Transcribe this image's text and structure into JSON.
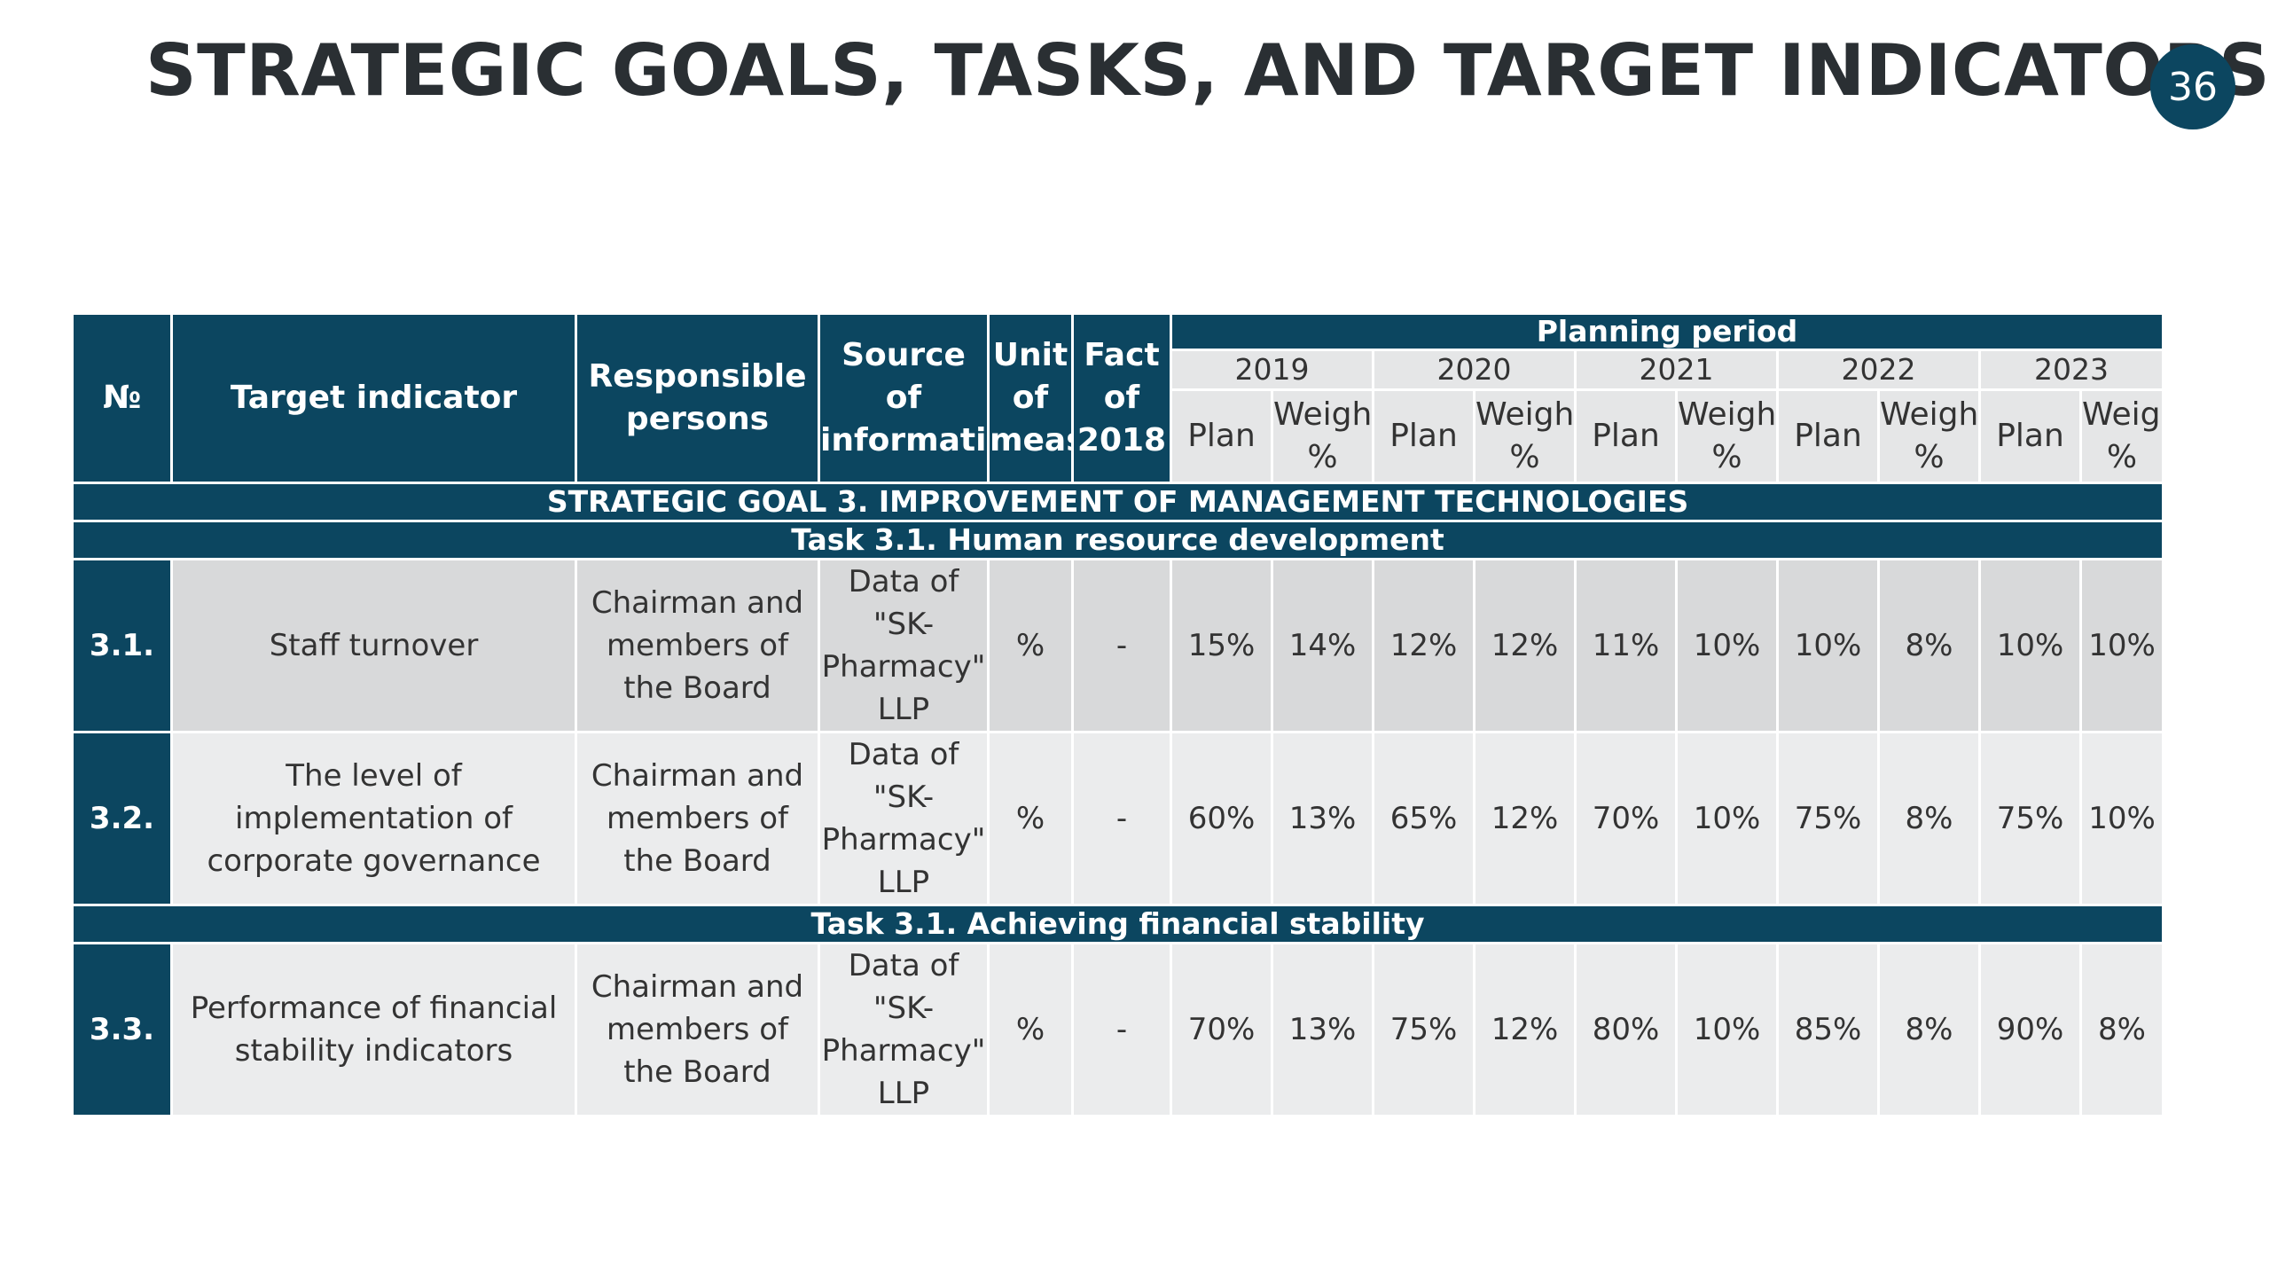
{
  "title": "STRATEGIC GOALS, TASKS, AND TARGET INDICATORS",
  "page_number": "36",
  "colors": {
    "header_bg": "#0c4660",
    "subheader_bg": "#e5e6e7",
    "row_bg_dark": "#d8d9da",
    "row_bg_light": "#ebeced"
  },
  "table": {
    "headers": {
      "no": "№",
      "target": "Target indicator",
      "responsible": "Responsible persons",
      "source": "Source of information",
      "unit": "Unit of meas.",
      "fact": "Fact of 2018",
      "planning": "Planning period",
      "years": [
        "2019",
        "2020",
        "2021",
        "2022",
        "2023"
      ],
      "plan": "Plan",
      "weight": "Weight, %"
    },
    "goal": "STRATEGIC GOAL 3. IMPROVEMENT OF MANAGEMENT TECHNOLOGIES",
    "task1": "Task 3.1. Human resource development",
    "task2": "Task 3.1. Achieving financial stability",
    "rows": [
      {
        "no": "3.1.",
        "indicator": "Staff turnover",
        "responsible": "Chairman and members of the Board",
        "source": "Data of \"SK-Pharmacy\" LLP",
        "unit": "%",
        "fact": "-",
        "values": [
          "15%",
          "14%",
          "12%",
          "12%",
          "11%",
          "10%",
          "10%",
          "8%",
          "10%",
          "10%"
        ]
      },
      {
        "no": "3.2.",
        "indicator": "The level of implementation of corporate governance",
        "responsible": "Chairman and members of the Board",
        "source": "Data of \"SK-Pharmacy\" LLP",
        "unit": "%",
        "fact": "-",
        "values": [
          "60%",
          "13%",
          "65%",
          "12%",
          "70%",
          "10%",
          "75%",
          "8%",
          "75%",
          "10%"
        ]
      },
      {
        "no": "3.3.",
        "indicator": "Performance of financial stability indicators",
        "responsible": "Chairman and members of the Board",
        "source": "Data of \"SK-Pharmacy\" LLP",
        "unit": "%",
        "fact": "-",
        "values": [
          "70%",
          "13%",
          "75%",
          "12%",
          "80%",
          "10%",
          "85%",
          "8%",
          "90%",
          "8%"
        ]
      }
    ]
  }
}
